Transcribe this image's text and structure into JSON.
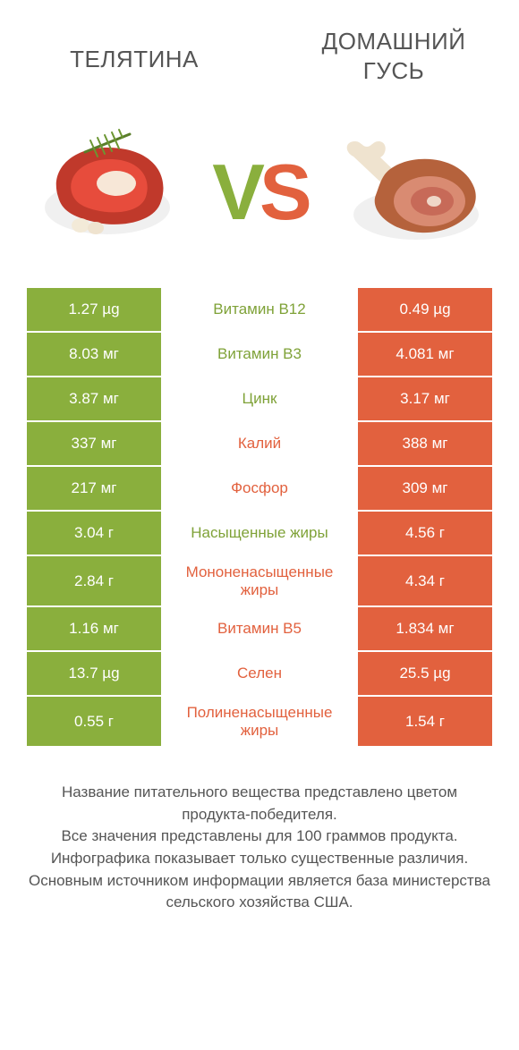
{
  "colors": {
    "green": "#8aaf3d",
    "orange": "#e2613e",
    "text": "#555555",
    "background": "#ffffff"
  },
  "header": {
    "left_title": "ТЕЛЯТИНА",
    "right_title": "ДОМАШНИЙ ГУСЬ",
    "vs_v": "V",
    "vs_s": "S"
  },
  "rows": [
    {
      "label": "Витамин B12",
      "left": "1.27 µg",
      "right": "0.49 µg",
      "winner": "left"
    },
    {
      "label": "Витамин B3",
      "left": "8.03 мг",
      "right": "4.081 мг",
      "winner": "left"
    },
    {
      "label": "Цинк",
      "left": "3.87 мг",
      "right": "3.17 мг",
      "winner": "left"
    },
    {
      "label": "Калий",
      "left": "337 мг",
      "right": "388 мг",
      "winner": "right"
    },
    {
      "label": "Фосфор",
      "left": "217 мг",
      "right": "309 мг",
      "winner": "right"
    },
    {
      "label": "Насыщенные жиры",
      "left": "3.04 г",
      "right": "4.56 г",
      "winner": "left"
    },
    {
      "label": "Мононенасыщенные жиры",
      "left": "2.84 г",
      "right": "4.34 г",
      "winner": "right"
    },
    {
      "label": "Витамин B5",
      "left": "1.16 мг",
      "right": "1.834 мг",
      "winner": "right"
    },
    {
      "label": "Селен",
      "left": "13.7 µg",
      "right": "25.5 µg",
      "winner": "right"
    },
    {
      "label": "Полиненасыщенные жиры",
      "left": "0.55 г",
      "right": "1.54 г",
      "winner": "right"
    }
  ],
  "footer": {
    "line1": "Название питательного вещества представлено цветом продукта-победителя.",
    "line2": "Все значения представлены для 100 граммов продукта.",
    "line3": "Инфографика показывает только существенные различия.",
    "line4": "Основным источником информации является база министерства сельского хозяйства США."
  }
}
